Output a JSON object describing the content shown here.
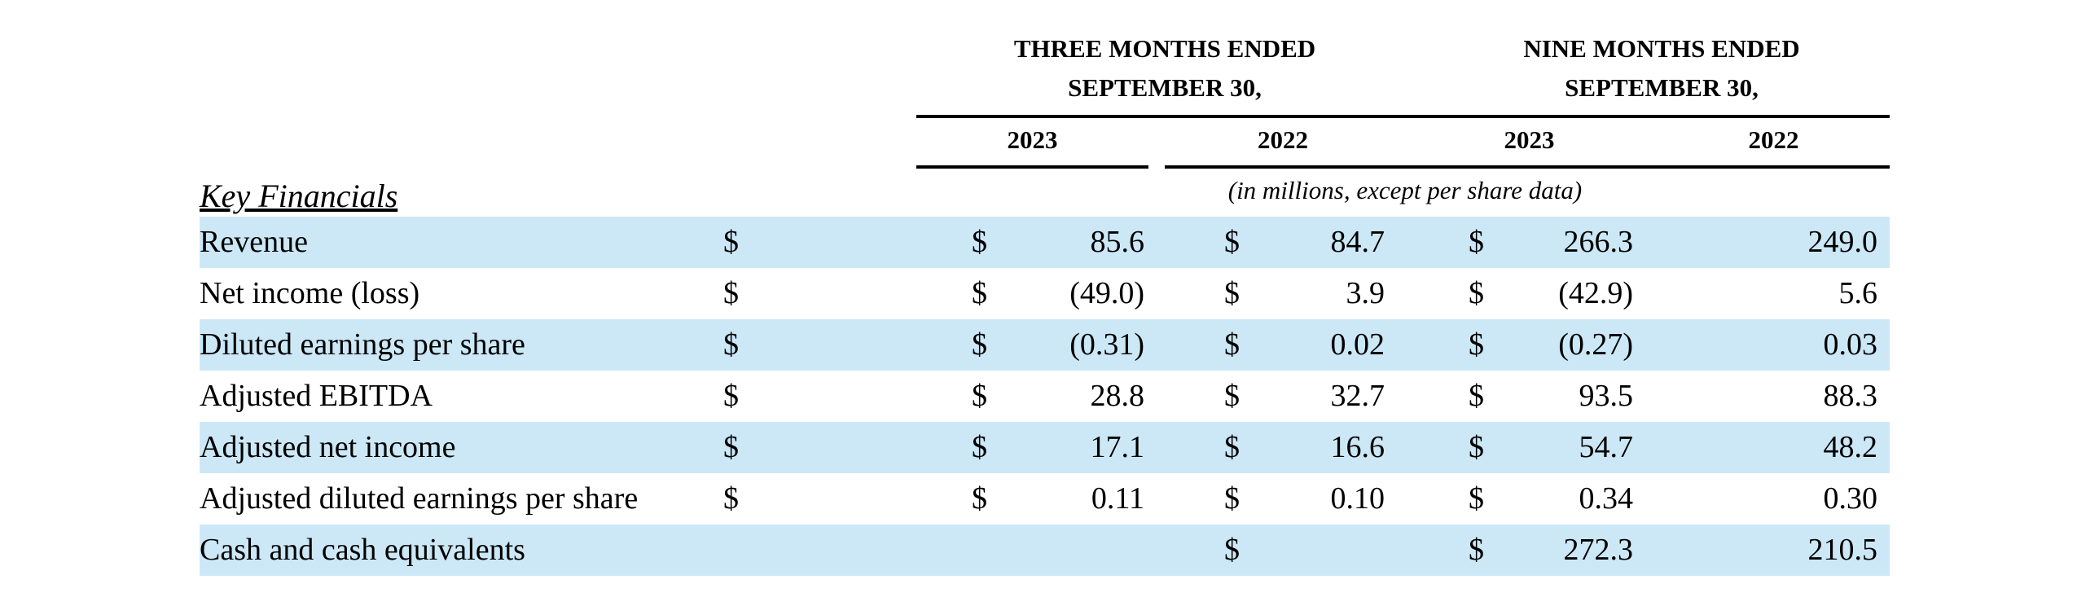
{
  "headers": {
    "three_months": [
      "THREE MONTHS ENDED",
      "SEPTEMBER 30,"
    ],
    "nine_months": [
      "NINE MONTHS ENDED",
      "SEPTEMBER 30,"
    ],
    "years": [
      "2023",
      "2022",
      "2023",
      "2022"
    ],
    "units_note": "(in millions, except per share data)",
    "section_title": "Key Financials"
  },
  "rows": [
    {
      "label": "Revenue",
      "shaded": true,
      "cells": [
        {
          "cur": "$",
          "val": "85.6"
        },
        {
          "cur": "$",
          "val": "84.7"
        },
        {
          "cur": "$",
          "val": "266.3"
        },
        {
          "cur": "$",
          "val": "249.0"
        }
      ]
    },
    {
      "label": "Net income (loss)",
      "shaded": false,
      "cells": [
        {
          "cur": "$",
          "val": "(49.0)"
        },
        {
          "cur": "$",
          "val": "3.9"
        },
        {
          "cur": "$",
          "val": "(42.9)"
        },
        {
          "cur": "$",
          "val": "5.6"
        }
      ]
    },
    {
      "label": "Diluted earnings per share",
      "shaded": true,
      "cells": [
        {
          "cur": "$",
          "val": "(0.31)"
        },
        {
          "cur": "$",
          "val": "0.02"
        },
        {
          "cur": "$",
          "val": "(0.27)"
        },
        {
          "cur": "$",
          "val": "0.03"
        }
      ]
    },
    {
      "label": "Adjusted EBITDA",
      "shaded": false,
      "cells": [
        {
          "cur": "$",
          "val": "28.8"
        },
        {
          "cur": "$",
          "val": "32.7"
        },
        {
          "cur": "$",
          "val": "93.5"
        },
        {
          "cur": "$",
          "val": "88.3"
        }
      ]
    },
    {
      "label": "Adjusted net income",
      "shaded": true,
      "cells": [
        {
          "cur": "$",
          "val": "17.1"
        },
        {
          "cur": "$",
          "val": "16.6"
        },
        {
          "cur": "$",
          "val": "54.7"
        },
        {
          "cur": "$",
          "val": "48.2"
        }
      ]
    },
    {
      "label": "Adjusted diluted earnings per share",
      "shaded": false,
      "cells": [
        {
          "cur": "$",
          "val": "0.11"
        },
        {
          "cur": "$",
          "val": "0.10"
        },
        {
          "cur": "$",
          "val": "0.34"
        },
        {
          "cur": "$",
          "val": "0.30"
        }
      ]
    },
    {
      "label": "Cash and cash equivalents",
      "shaded": true,
      "cells": [
        {
          "cur": "",
          "val": ""
        },
        {
          "cur": "",
          "val": ""
        },
        {
          "cur": "$",
          "val": "272.3"
        },
        {
          "cur": "$",
          "val": "210.5"
        }
      ]
    }
  ],
  "colors": {
    "row_shading": "#cce8f7",
    "text": "#000000",
    "rule": "#000000"
  }
}
